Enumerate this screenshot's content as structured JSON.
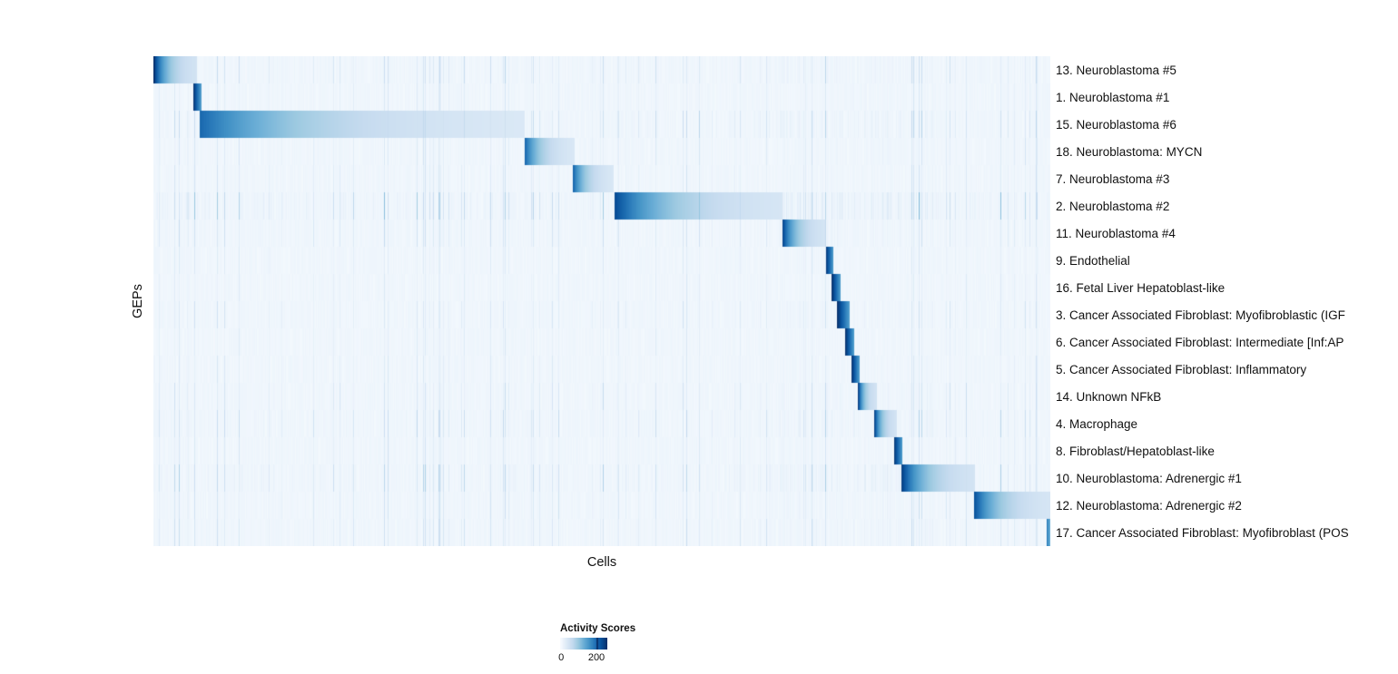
{
  "chart_data": {
    "type": "heatmap",
    "xlabel": "Cells",
    "ylabel": "GEPs",
    "noise_seed": 20240607,
    "legend": {
      "title": "Activity Scores",
      "min": 0,
      "max": 200,
      "min_label": "0",
      "max_label": "200",
      "norm_max": 260,
      "position": "bottom-left",
      "colormap": [
        "#f7fbff",
        "#deebf7",
        "#c6dbef",
        "#9ecae1",
        "#6baed6",
        "#4292c6",
        "#2171b5",
        "#08519c",
        "#08306b"
      ]
    },
    "grid": false,
    "value_model_note": "Each row shows one GEP; cells are sorted so each GEP has a contiguous block of high activity (dark at block start, decaying rightward) over a faint striped low-activity background.",
    "rows": [
      {
        "label": "13. Neuroblastoma #5",
        "start": 0.0,
        "end": 0.048,
        "vmax": 260,
        "noise": 0.55
      },
      {
        "label": "1. Neuroblastoma #1",
        "start": 0.044,
        "end": 0.053,
        "vmax": 260,
        "noise": 0.35
      },
      {
        "label": "15. Neuroblastoma #6",
        "start": 0.051,
        "end": 0.413,
        "vmax": 205,
        "noise": 0.6
      },
      {
        "label": "18. Neuroblastoma: MYCN",
        "start": 0.413,
        "end": 0.469,
        "vmax": 215,
        "noise": 0.4
      },
      {
        "label": "7. Neuroblastoma #3",
        "start": 0.467,
        "end": 0.513,
        "vmax": 215,
        "noise": 0.4
      },
      {
        "label": "2. Neuroblastoma #2",
        "start": 0.514,
        "end": 0.701,
        "vmax": 235,
        "noise": 0.85
      },
      {
        "label": "11. Neuroblastoma #4",
        "start": 0.701,
        "end": 0.749,
        "vmax": 245,
        "noise": 0.5
      },
      {
        "label": "9. Endothelial",
        "start": 0.749,
        "end": 0.758,
        "vmax": 260,
        "noise": 0.3
      },
      {
        "label": "16. Fetal Liver Hepatoblast-like",
        "start": 0.756,
        "end": 0.766,
        "vmax": 260,
        "noise": 0.3
      },
      {
        "label": "3. Cancer Associated Fibroblast: Myofibroblastic (IGF",
        "start": 0.762,
        "end": 0.776,
        "vmax": 260,
        "noise": 0.45
      },
      {
        "label": "6. Cancer Associated Fibroblast: Intermediate [Inf:AP",
        "start": 0.771,
        "end": 0.781,
        "vmax": 260,
        "noise": 0.3
      },
      {
        "label": "5. Cancer Associated Fibroblast: Inflammatory",
        "start": 0.778,
        "end": 0.787,
        "vmax": 260,
        "noise": 0.35
      },
      {
        "label": "14. Unknown NFkB",
        "start": 0.785,
        "end": 0.806,
        "vmax": 260,
        "noise": 0.5
      },
      {
        "label": "4. Macrophage",
        "start": 0.803,
        "end": 0.828,
        "vmax": 260,
        "noise": 0.6
      },
      {
        "label": "8. Fibroblast/Hepatoblast-like",
        "start": 0.825,
        "end": 0.835,
        "vmax": 260,
        "noise": 0.4
      },
      {
        "label": "10. Neuroblastoma: Adrenergic #1",
        "start": 0.833,
        "end": 0.915,
        "vmax": 255,
        "noise": 0.7
      },
      {
        "label": "12. Neuroblastoma: Adrenergic #2",
        "start": 0.914,
        "end": 1.0,
        "vmax": 235,
        "noise": 0.45
      },
      {
        "label": "17. Cancer Associated Fibroblast: Myofibroblast (POS",
        "start": 0.995,
        "end": 1.0,
        "vmax": 200,
        "noise": 0.5
      }
    ]
  }
}
